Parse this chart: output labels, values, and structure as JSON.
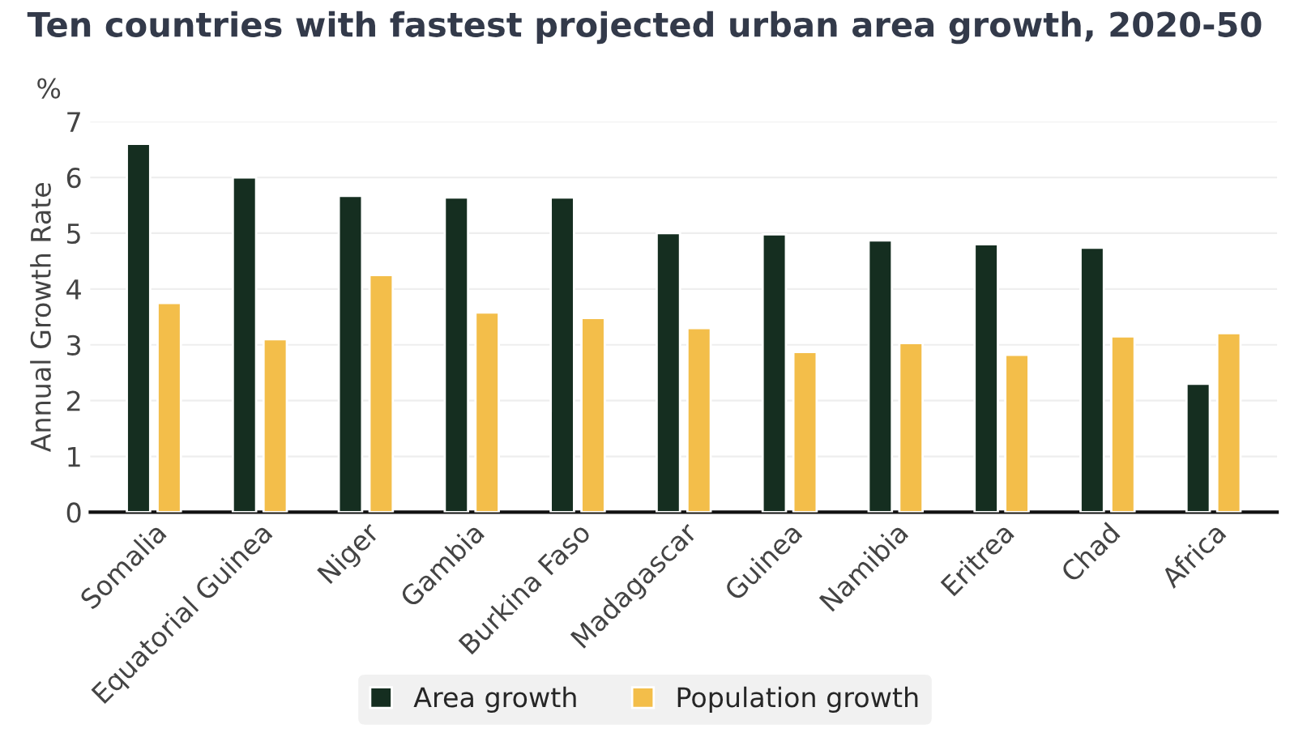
{
  "chart_data": {
    "type": "bar",
    "title": "Ten countries with fastest projected urban area growth, 2020-50",
    "ylabel": "Annual Growth Rate",
    "annotations": [
      "%"
    ],
    "categories": [
      "Somalia",
      "Equatorial Guinea",
      "Niger",
      "Gambia",
      "Burkina Faso",
      "Madagascar",
      "Guinea",
      "Namibia",
      "Eritrea",
      "Chad",
      "Africa"
    ],
    "series": [
      {
        "name": "Area growth",
        "color": "#152e20",
        "values": [
          6.6,
          6.0,
          5.67,
          5.64,
          5.64,
          5.0,
          4.98,
          4.87,
          4.8,
          4.74,
          2.3
        ]
      },
      {
        "name": "Population growth",
        "color": "#f3be4a",
        "values": [
          3.75,
          3.1,
          4.25,
          3.58,
          3.48,
          3.3,
          2.87,
          3.03,
          2.82,
          3.15,
          3.21
        ]
      }
    ],
    "ylim": [
      0,
      7
    ],
    "yticks": [
      0,
      1,
      2,
      3,
      4,
      5,
      6,
      7
    ],
    "grid": "y",
    "legend": "bottom"
  }
}
